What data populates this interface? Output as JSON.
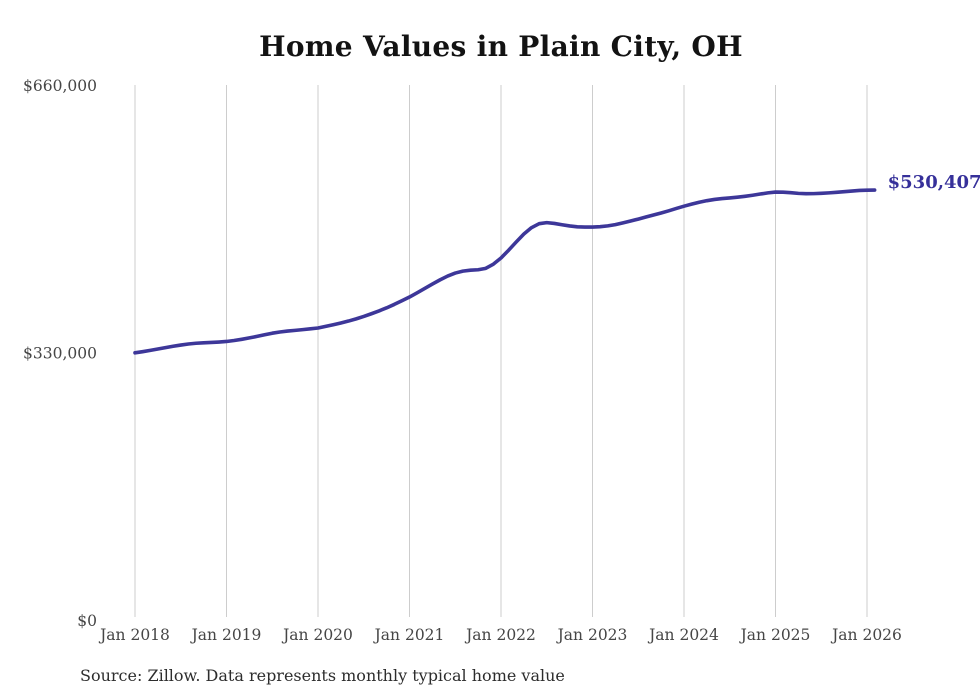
{
  "header": {
    "title": "Home Values in Plain City, OH"
  },
  "footer": {
    "source": "Source: Zillow. Data represents monthly typical home value"
  },
  "colors": {
    "line": "#3d3799",
    "end_label": "#36309a",
    "grid": "#cdcdcd",
    "axis_text": "#464646",
    "title_text": "#131313"
  },
  "chart_data": {
    "type": "line",
    "title": "Home Values in Plain City, OH",
    "xlabel": "",
    "ylabel": "",
    "x_tick_labels": [
      "Jan 2018",
      "Jan 2019",
      "Jan 2020",
      "Jan 2021",
      "Jan 2022",
      "Jan 2023",
      "Jan 2024",
      "Jan 2025",
      "Jan 2026"
    ],
    "y_ticks": [
      0,
      330000,
      660000
    ],
    "y_tick_labels": [
      "$0",
      "$330,000",
      "$660,000"
    ],
    "ylim": [
      0,
      660000
    ],
    "grid": "vertical-only",
    "legend_position": "none",
    "end_label": "$530,407",
    "series": [
      {
        "name": "Monthly typical home value",
        "start_month": "2018-01",
        "end_month": "2026-02",
        "values": [
          329600,
          331000,
          332600,
          334300,
          336000,
          337700,
          339200,
          340500,
          341400,
          342000,
          342400,
          342900,
          343600,
          344800,
          346300,
          348000,
          349900,
          351900,
          353800,
          355300,
          356400,
          357300,
          358200,
          359200,
          360200,
          362200,
          364200,
          366400,
          368800,
          371500,
          374500,
          377800,
          381300,
          385100,
          389300,
          393800,
          398400,
          403600,
          409000,
          414400,
          419600,
          424300,
          428000,
          430400,
          431500,
          432100,
          433800,
          439000,
          446600,
          456200,
          466400,
          476200,
          484000,
          488900,
          490200,
          489200,
          487600,
          486100,
          485100,
          484800,
          484800,
          485200,
          486200,
          487800,
          489900,
          492200,
          494600,
          497100,
          499600,
          502100,
          504800,
          507700,
          510500,
          513000,
          515400,
          517300,
          518800,
          519900,
          520700,
          521600,
          522700,
          524000,
          525500,
          526900,
          527900,
          527800,
          527100,
          526300,
          525900,
          526000,
          526400,
          526900,
          527600,
          528400,
          529200,
          529900,
          530200,
          530407
        ]
      }
    ]
  }
}
